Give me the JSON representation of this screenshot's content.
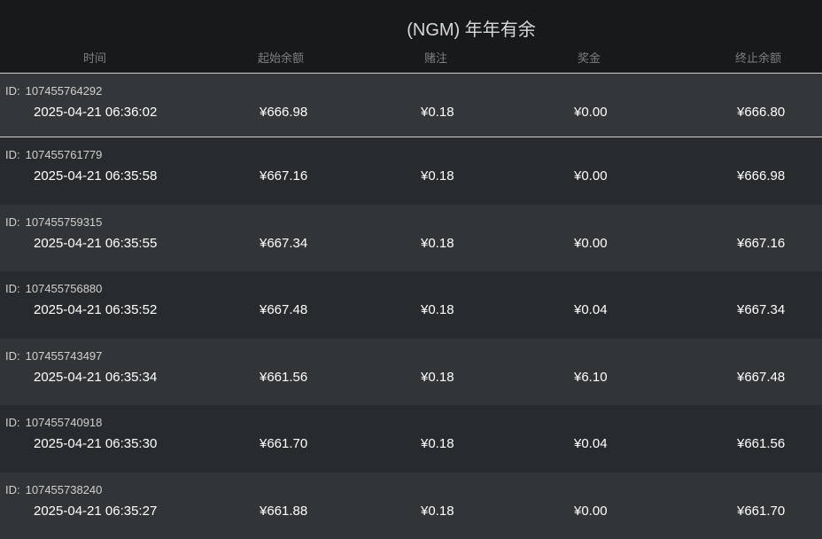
{
  "title": "(NGM) 年年有余",
  "columns": [
    "时间",
    "起始余额",
    "赌注",
    "奖金",
    "终止余额"
  ],
  "id_label": "ID:",
  "rows": [
    {
      "id": "107455764292",
      "time": "2025-04-21 06:36:02",
      "start": "¥666.98",
      "bet": "¥0.18",
      "win": "¥0.00",
      "end": "¥666.80",
      "selected": true
    },
    {
      "id": "107455761779",
      "time": "2025-04-21 06:35:58",
      "start": "¥667.16",
      "bet": "¥0.18",
      "win": "¥0.00",
      "end": "¥666.98"
    },
    {
      "id": "107455759315",
      "time": "2025-04-21 06:35:55",
      "start": "¥667.34",
      "bet": "¥0.18",
      "win": "¥0.00",
      "end": "¥667.16"
    },
    {
      "id": "107455756880",
      "time": "2025-04-21 06:35:52",
      "start": "¥667.48",
      "bet": "¥0.18",
      "win": "¥0.04",
      "end": "¥667.34"
    },
    {
      "id": "107455743497",
      "time": "2025-04-21 06:35:34",
      "start": "¥661.56",
      "bet": "¥0.18",
      "win": "¥6.10",
      "end": "¥667.48"
    },
    {
      "id": "107455740918",
      "time": "2025-04-21 06:35:30",
      "start": "¥661.70",
      "bet": "¥0.18",
      "win": "¥0.04",
      "end": "¥661.56"
    },
    {
      "id": "107455738240",
      "time": "2025-04-21 06:35:27",
      "start": "¥661.88",
      "bet": "¥0.18",
      "win": "¥0.00",
      "end": "¥661.70"
    }
  ]
}
